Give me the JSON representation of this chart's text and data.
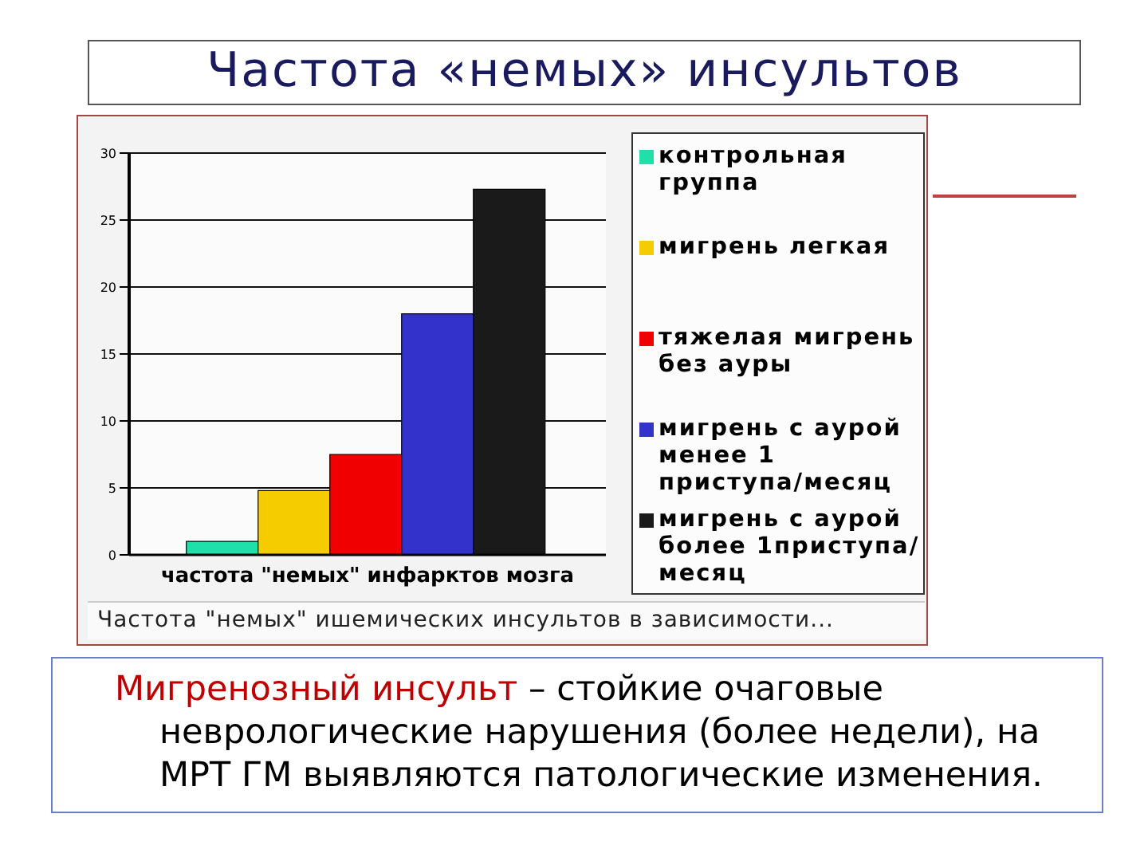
{
  "chart_data": {
    "type": "bar",
    "title": "Частота «немых» инсультов",
    "categories": [
      "частота \"немых\" инфарктов мозга"
    ],
    "series": [
      {
        "name": "контрольная группа",
        "color": "#1fe0a8",
        "values": [
          1
        ]
      },
      {
        "name": "мигрень легкая",
        "color": "#f5cc00",
        "values": [
          4.8
        ]
      },
      {
        "name": "тяжелая мигрень без ауры",
        "color": "#f00000",
        "values": [
          7.5
        ]
      },
      {
        "name": "мигрень с аурой менее 1 приступа/месяц",
        "color": "#3333cc",
        "values": [
          18
        ]
      },
      {
        "name": "мигрень с аурой более 1приступа/месяц",
        "color": "#1a1a1a",
        "values": [
          27.3
        ]
      }
    ],
    "ylim": [
      0,
      30
    ],
    "yticks": [
      0,
      5,
      10,
      15,
      20,
      25,
      30
    ],
    "grid": "y",
    "legend": "right",
    "annotations": [
      "Частота \"немых\" ишемических инсультов в зависимости...",
      "Мигренозный инсульт – стойкие очаговые неврологические нарушения (более недели), на МРТ ГМ выявляются патологические изменения."
    ]
  }
}
